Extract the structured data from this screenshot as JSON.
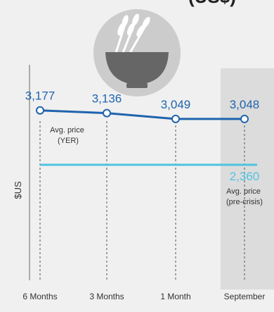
{
  "header": {
    "partial_title": "(US$)"
  },
  "icon": {
    "name": "wheat-bowl-icon",
    "circle_color": "#cccccc",
    "bowl_color": "#666666",
    "wheat_color": "#ffffff"
  },
  "colors": {
    "series": "#1f64ad",
    "reference": "#4fc3e0",
    "highlight_band": "#dcdcdc",
    "background": "#f0f0f0"
  },
  "chart_data": {
    "type": "line",
    "ylabel": "$US",
    "categories": [
      "6 Months",
      "3 Months",
      "1 Month",
      "September"
    ],
    "highlight_category": "September",
    "series": [
      {
        "values": [
          3177,
          3136,
          3049,
          3048
        ],
        "labels": [
          "3,177",
          "3,136",
          "3,049",
          "3,048"
        ]
      }
    ],
    "series_note": [
      "Avg. price",
      "(YER)"
    ],
    "reference_line": {
      "value": 2360,
      "label": "2,360",
      "note": [
        "Avg. price",
        "(pre-crisis)"
      ]
    },
    "grid": false
  }
}
